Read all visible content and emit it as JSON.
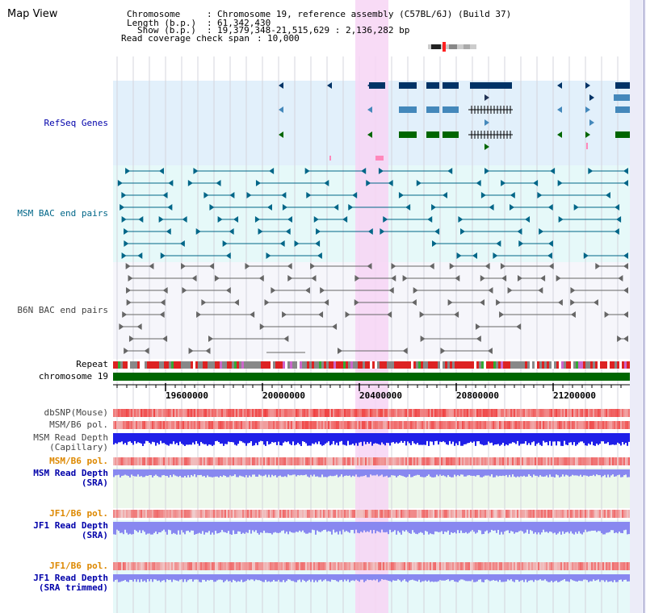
{
  "page": {
    "title": "Map View"
  },
  "info": {
    "chromosome_key": "Chromosome",
    "chromosome_value": "Chromosome 19, reference assembly (C57BL/6J) (Build 37)",
    "length_key": "Length (b.p.)",
    "length_value": "61,342,430",
    "show_key": "Show (b.p.)",
    "show_value": "19,379,348-21,515,629 : 2,136,282 bp",
    "coverage_key": "Read coverage check span",
    "coverage_value": "10,000"
  },
  "tracks": {
    "refseq": "RefSeq Genes",
    "msm_bac": "MSM BAC end pairs",
    "b6n_bac": "B6N BAC end pairs",
    "repeat": "Repeat",
    "chromosome": "chromosome 19",
    "dbsnp": "dbSNP(Mouse)",
    "msm_b6_pol": "MSM/B6 pol.",
    "msm_depth_cap_1": "MSM Read Depth",
    "msm_depth_cap_2": "(Capillary)",
    "msm_b6_pol_2": "MSM/B6 pol.",
    "msm_depth_sra_1": "MSM Read Depth",
    "msm_depth_sra_2": "(SRA)",
    "jf1_b6_pol": "JF1/B6 pol.",
    "jf1_depth_sra_1": "JF1 Read Depth",
    "jf1_depth_sra_2": "(SRA)",
    "jf1_b6_pol_2": "JF1/B6 pol.",
    "jf1_depth_trim_1": "JF1 Read Depth",
    "jf1_depth_trim_2": "(SRA trimmed)"
  },
  "ruler": {
    "ticks": [
      "19600000",
      "20000000",
      "20400000",
      "20800000",
      "21200000"
    ]
  },
  "colors": {
    "refseq_bg": "#e2f0fb",
    "msm_bg": "#e6f9f9",
    "b6n_bg": "#f6f6fb",
    "highlight": "#f7d5f5",
    "refseq_dark": "#003366",
    "refseq_mid": "#4488bb",
    "refseq_green": "#006600",
    "msm_bac": "#006688",
    "b6n_bac": "#666666",
    "chromosome": "#006600",
    "snp_red": "#f04848",
    "depth_blue": "#2020e8",
    "depth_light": "#8888f0",
    "label_blue": "#0000aa",
    "label_orange": "#dd8800",
    "label_teal": "#006688",
    "label_gray": "#444444"
  }
}
